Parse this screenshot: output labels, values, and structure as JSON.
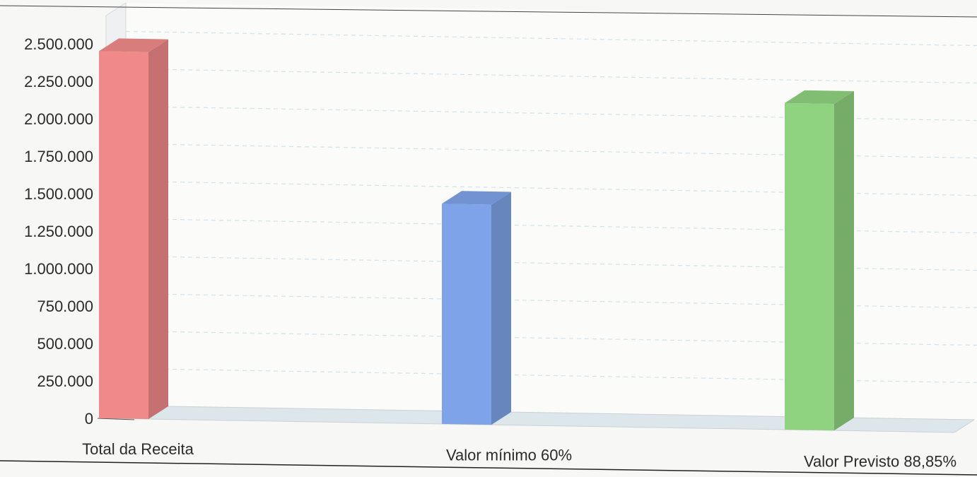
{
  "chart_data": {
    "type": "bar",
    "title": "",
    "xlabel": "",
    "ylabel": "",
    "categories": [
      "Total da Receita",
      "Valor mínimo 60%",
      "Valor Previsto 88,85%"
    ],
    "values": [
      2450000,
      1470000,
      2180000
    ],
    "bar_colors": [
      "#f08a8a",
      "#7ea3e8",
      "#8fd27f"
    ],
    "ylim": [
      0,
      2500000
    ],
    "yticks": [
      0,
      250000,
      500000,
      750000,
      1000000,
      1250000,
      1500000,
      1750000,
      2000000,
      2250000,
      2500000
    ],
    "ytick_labels": [
      "0",
      "250.000",
      "500.000",
      "750.000",
      "1.000.000",
      "1.250.000",
      "1.500.000",
      "1.750.000",
      "2.000.000",
      "2.250.000",
      "2.500.000"
    ],
    "grid": true,
    "style": "3d-column"
  }
}
